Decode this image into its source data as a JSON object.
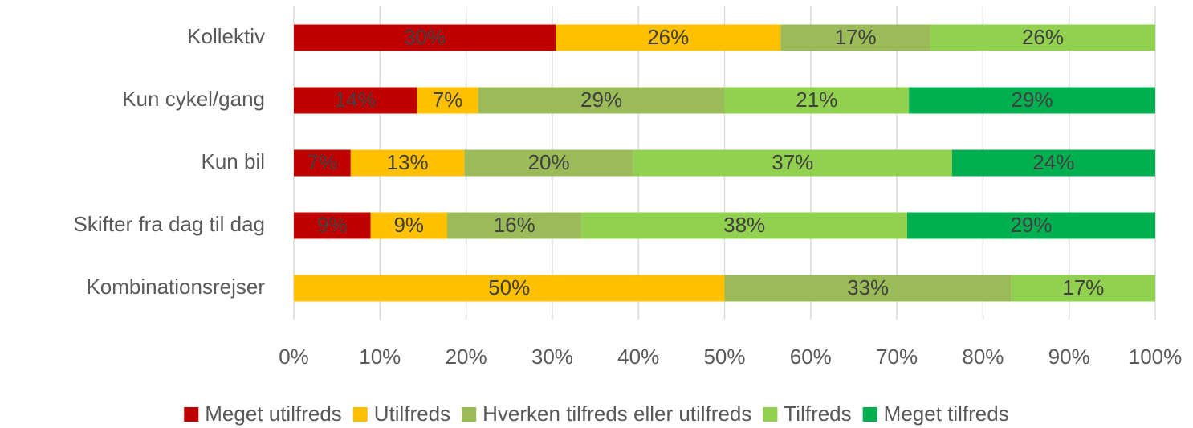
{
  "chart_data": {
    "type": "stacked_barh",
    "categories": [
      "Kollektiv",
      "Kun cykel/gang",
      "Kun bil",
      "Skifter fra dag til dag",
      "Kombinationsrejser"
    ],
    "series": [
      {
        "name": "Meget utilfreds",
        "color": "#c00000",
        "values": [
          30.4,
          14.3,
          6.6,
          8.9,
          null
        ],
        "value_labels": [
          "30%",
          "14%",
          "7%",
          "9%",
          null
        ]
      },
      {
        "name": "Utilfreds",
        "color": "#ffc000",
        "values": [
          26.1,
          7.1,
          13.2,
          8.9,
          50
        ],
        "value_labels": [
          "26%",
          "7%",
          "13%",
          "9%",
          "50%"
        ]
      },
      {
        "name": "Hverken tilfreds eller utilfreds",
        "color": "#9bbb59",
        "values": [
          17.4,
          28.6,
          19.6,
          15.6,
          33.3
        ],
        "value_labels": [
          "17%",
          "29%",
          "20%",
          "16%",
          "33%"
        ]
      },
      {
        "name": "Tilfreds",
        "color": "#92d050",
        "values": [
          26.1,
          21.4,
          37,
          37.8,
          16.7
        ],
        "value_labels": [
          "26%",
          "21%",
          "37%",
          "38%",
          "17%"
        ]
      },
      {
        "name": "Meget tilfreds",
        "color": "#00b050",
        "values": [
          null,
          28.6,
          23.6,
          28.8,
          null
        ],
        "value_labels": [
          null,
          "29%",
          "24%",
          "29%",
          null
        ]
      }
    ],
    "xlim": [
      0,
      100
    ],
    "xticks": [
      {
        "value": 0,
        "label": "0%"
      },
      {
        "value": 10,
        "label": "10%"
      },
      {
        "value": 20,
        "label": "20%"
      },
      {
        "value": 30,
        "label": "30%"
      },
      {
        "value": 40,
        "label": "40%"
      },
      {
        "value": 50,
        "label": "50%"
      },
      {
        "value": 60,
        "label": "60%"
      },
      {
        "value": 70,
        "label": "70%"
      },
      {
        "value": 80,
        "label": "80%"
      },
      {
        "value": 90,
        "label": "90%"
      },
      {
        "value": 100,
        "label": "100%"
      }
    ],
    "grid": true,
    "legend": "bottom"
  }
}
